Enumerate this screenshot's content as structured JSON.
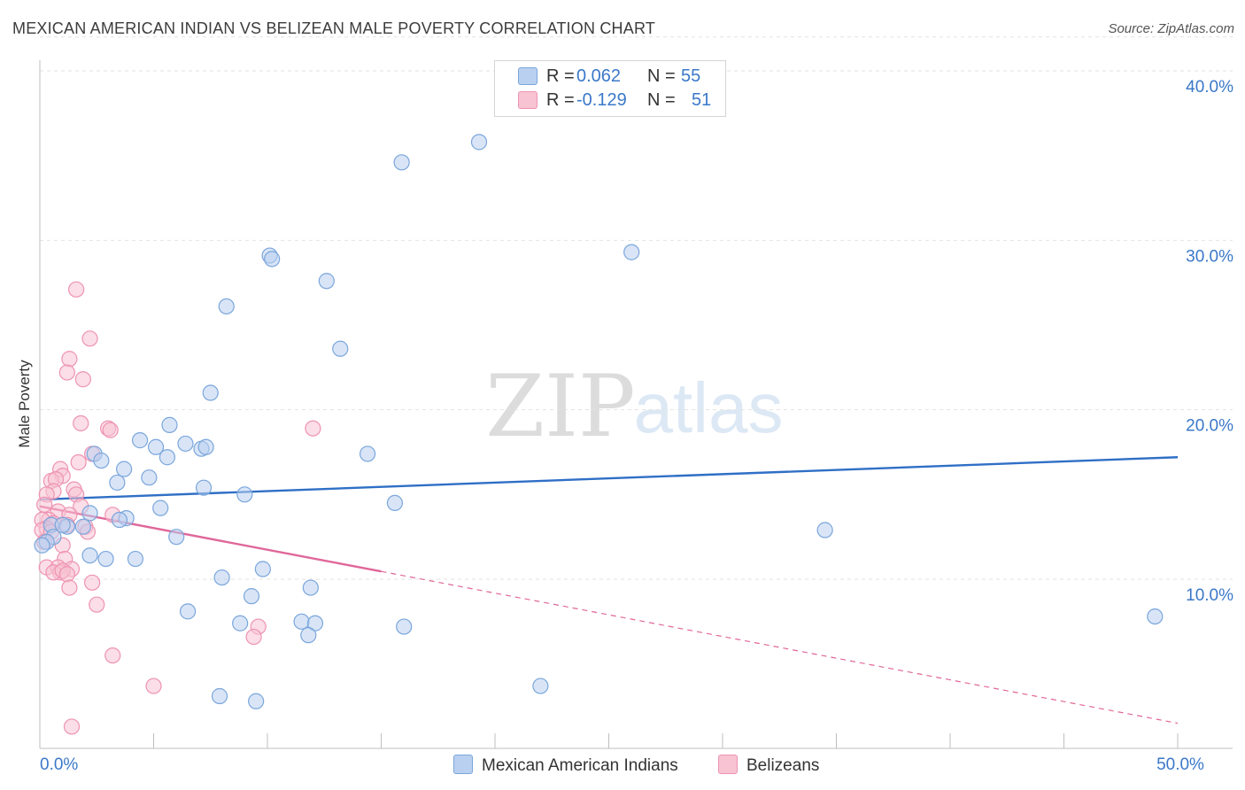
{
  "header": {
    "title": "MEXICAN AMERICAN INDIAN VS BELIZEAN MALE POVERTY CORRELATION CHART",
    "source": "Source: ZipAtlas.com"
  },
  "watermark": {
    "zip": "ZIP",
    "atlas": "atlas"
  },
  "legend": {
    "rows": [
      {
        "r_label": "R =",
        "r_value": "0.062",
        "n_label": "N =",
        "n_value": "55"
      },
      {
        "r_label": "R =",
        "r_value": "-0.129",
        "n_label": "N =",
        "n_value": "51"
      }
    ]
  },
  "bottom_legend": {
    "series1": "Mexican American Indians",
    "series2": "Belizeans"
  },
  "chart_data": {
    "type": "scatter",
    "title": "MEXICAN AMERICAN INDIAN VS BELIZEAN MALE POVERTY CORRELATION CHART",
    "xlabel": "",
    "ylabel": "Male Poverty",
    "xlim": [
      0,
      50
    ],
    "ylim": [
      0,
      42
    ],
    "x_tick_labels": [
      {
        "value": 0,
        "label": "0.0%"
      },
      {
        "value": 50,
        "label": "50.0%"
      }
    ],
    "y_tick_labels": [
      {
        "value": 10,
        "label": "10.0%"
      },
      {
        "value": 20,
        "label": "20.0%"
      },
      {
        "value": 30,
        "label": "30.0%"
      },
      {
        "value": 40,
        "label": "40.0%"
      }
    ],
    "colors": {
      "series1_fill": "#b9d0f0",
      "series1_stroke": "#7aa6dc",
      "series1_line": "#2f6fc6",
      "series2_fill": "#f8c3d3",
      "series2_stroke": "#ee93b1",
      "series2_line": "#e0679a"
    },
    "series": [
      {
        "name": "Mexican American Indians",
        "R": 0.062,
        "N": 55,
        "trend": {
          "x": [
            0,
            50
          ],
          "y": [
            14.7,
            17.2
          ],
          "solid_to": 50
        },
        "points": [
          [
            19.3,
            35.8
          ],
          [
            15.9,
            34.6
          ],
          [
            26.0,
            29.3
          ],
          [
            10.1,
            29.1
          ],
          [
            10.2,
            28.9
          ],
          [
            12.6,
            27.6
          ],
          [
            8.2,
            26.1
          ],
          [
            13.2,
            23.6
          ],
          [
            7.5,
            21.0
          ],
          [
            5.7,
            19.1
          ],
          [
            4.4,
            18.2
          ],
          [
            5.1,
            17.8
          ],
          [
            6.4,
            18.0
          ],
          [
            7.1,
            17.7
          ],
          [
            7.3,
            17.8
          ],
          [
            5.6,
            17.2
          ],
          [
            14.4,
            17.4
          ],
          [
            2.4,
            17.4
          ],
          [
            2.7,
            17.0
          ],
          [
            3.7,
            16.5
          ],
          [
            3.4,
            15.7
          ],
          [
            4.8,
            16.0
          ],
          [
            7.2,
            15.4
          ],
          [
            9.0,
            15.0
          ],
          [
            15.6,
            14.5
          ],
          [
            5.3,
            14.2
          ],
          [
            2.2,
            13.9
          ],
          [
            3.8,
            13.6
          ],
          [
            3.5,
            13.5
          ],
          [
            0.5,
            13.2
          ],
          [
            1.2,
            13.1
          ],
          [
            1.9,
            13.1
          ],
          [
            34.5,
            12.9
          ],
          [
            0.6,
            12.5
          ],
          [
            0.3,
            12.2
          ],
          [
            6.0,
            12.5
          ],
          [
            0.1,
            12.0
          ],
          [
            2.2,
            11.4
          ],
          [
            2.9,
            11.2
          ],
          [
            4.2,
            11.2
          ],
          [
            9.8,
            10.6
          ],
          [
            8.0,
            10.1
          ],
          [
            11.9,
            9.5
          ],
          [
            9.3,
            9.0
          ],
          [
            6.5,
            8.1
          ],
          [
            49.0,
            7.8
          ],
          [
            11.5,
            7.5
          ],
          [
            8.8,
            7.4
          ],
          [
            12.1,
            7.4
          ],
          [
            16.0,
            7.2
          ],
          [
            11.8,
            6.7
          ],
          [
            22.0,
            3.7
          ],
          [
            7.9,
            3.1
          ],
          [
            9.5,
            2.8
          ],
          [
            1.0,
            13.2
          ]
        ]
      },
      {
        "name": "Belizeans",
        "R": -0.129,
        "N": 51,
        "trend": {
          "x": [
            0,
            50
          ],
          "y": [
            14.3,
            1.5
          ],
          "solid_to": 15
        },
        "points": [
          [
            1.6,
            27.1
          ],
          [
            2.2,
            24.2
          ],
          [
            1.3,
            23.0
          ],
          [
            1.2,
            22.2
          ],
          [
            1.9,
            21.8
          ],
          [
            1.8,
            19.2
          ],
          [
            3.0,
            18.9
          ],
          [
            3.1,
            18.8
          ],
          [
            12.0,
            18.9
          ],
          [
            2.3,
            17.4
          ],
          [
            1.7,
            16.9
          ],
          [
            0.9,
            16.5
          ],
          [
            1.0,
            16.1
          ],
          [
            0.5,
            15.8
          ],
          [
            0.7,
            15.9
          ],
          [
            0.6,
            15.2
          ],
          [
            1.5,
            15.3
          ],
          [
            0.3,
            15.0
          ],
          [
            1.6,
            15.0
          ],
          [
            0.2,
            14.4
          ],
          [
            1.8,
            14.3
          ],
          [
            0.8,
            14.0
          ],
          [
            1.3,
            13.8
          ],
          [
            3.2,
            13.8
          ],
          [
            0.4,
            13.5
          ],
          [
            0.1,
            13.5
          ],
          [
            0.6,
            13.3
          ],
          [
            1.2,
            13.2
          ],
          [
            0.3,
            13.0
          ],
          [
            0.1,
            12.9
          ],
          [
            2.0,
            13.1
          ],
          [
            0.5,
            12.8
          ],
          [
            2.1,
            12.8
          ],
          [
            0.2,
            12.2
          ],
          [
            1.0,
            12.0
          ],
          [
            1.1,
            11.2
          ],
          [
            0.3,
            10.7
          ],
          [
            0.8,
            10.7
          ],
          [
            1.4,
            10.6
          ],
          [
            0.9,
            10.4
          ],
          [
            0.6,
            10.4
          ],
          [
            1.0,
            10.5
          ],
          [
            1.2,
            10.3
          ],
          [
            2.3,
            9.8
          ],
          [
            1.3,
            9.5
          ],
          [
            2.5,
            8.5
          ],
          [
            9.6,
            7.2
          ],
          [
            9.4,
            6.6
          ],
          [
            3.2,
            5.5
          ],
          [
            5.0,
            3.7
          ],
          [
            1.4,
            1.3
          ]
        ]
      }
    ]
  }
}
